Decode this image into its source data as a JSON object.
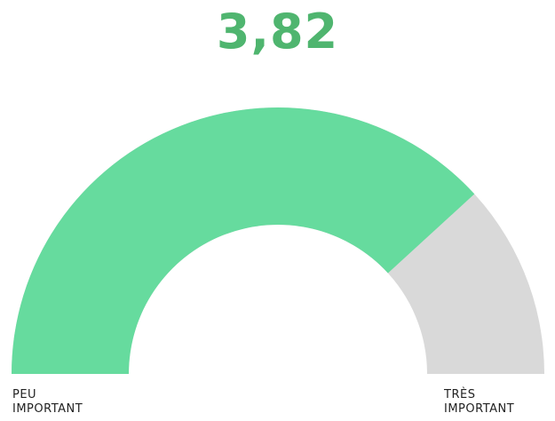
{
  "chart_data": {
    "type": "gauge",
    "value": 3.82,
    "value_label": "3,82",
    "ylim": [
      0,
      5
    ],
    "min_label": "PEU IMPORTANT",
    "max_label": "TRÈS IMPORTANT",
    "color": "#66db9e",
    "track_color": "#d9d9d9",
    "label_color": "#4fb56f"
  }
}
